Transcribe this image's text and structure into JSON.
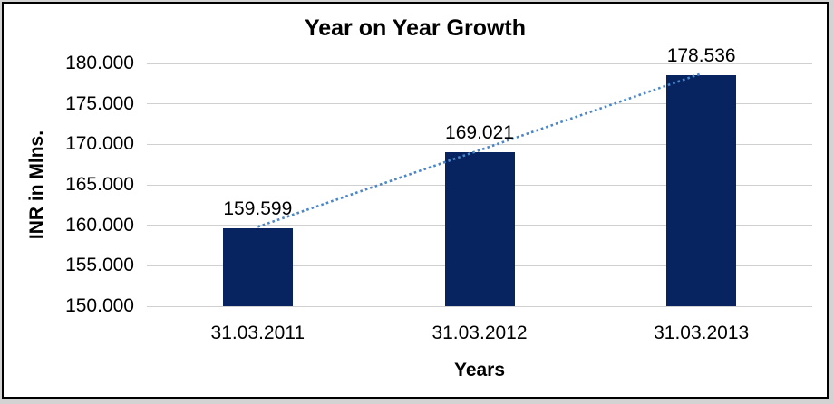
{
  "chart_data": {
    "type": "bar",
    "title": "Year on Year Growth",
    "xlabel": "Years",
    "ylabel": "INR in Mlns.",
    "categories": [
      "31.03.2011",
      "31.03.2012",
      "31.03.2013"
    ],
    "series": [
      {
        "name": "INR in Mlns.",
        "values": [
          159.599,
          169.021,
          178.536
        ]
      }
    ],
    "data_labels": [
      "159.599",
      "169.021",
      "178.536"
    ],
    "ylim": [
      150,
      180
    ],
    "ytick_values": [
      150,
      155,
      160,
      165,
      170,
      175,
      180
    ],
    "ytick_labels": [
      "150.000",
      "155.000",
      "160.000",
      "165.000",
      "170.000",
      "175.000",
      "180.000"
    ],
    "grid": true,
    "legend": false,
    "trendline": {
      "type": "linear",
      "style": "dotted",
      "color": "#4a86c8"
    },
    "colors": {
      "bar": "#072461",
      "gridline": "#d0d0d0",
      "text": "#000000",
      "frame_border": "#000000",
      "background": "#ffffff",
      "outer_background": "#d3d3d3"
    }
  }
}
